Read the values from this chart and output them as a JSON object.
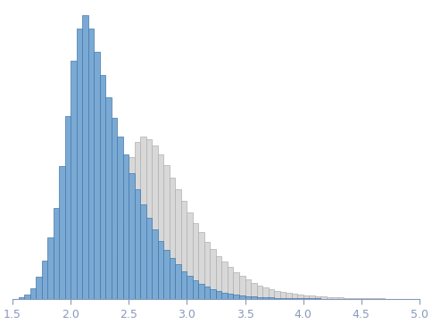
{
  "blue_hist": {
    "bin_edges": [
      1.55,
      1.6,
      1.65,
      1.7,
      1.75,
      1.8,
      1.85,
      1.9,
      1.95,
      2.0,
      2.05,
      2.1,
      2.15,
      2.2,
      2.25,
      2.3,
      2.35,
      2.4,
      2.45,
      2.5,
      2.55,
      2.6,
      2.65,
      2.7,
      2.75,
      2.8,
      2.85,
      2.9,
      2.95,
      3.0,
      3.05,
      3.1,
      3.15,
      3.2,
      3.25,
      3.3,
      3.35,
      3.4,
      3.45,
      3.5,
      3.55,
      3.6,
      3.65,
      3.7,
      3.75,
      3.8,
      3.85,
      3.9,
      3.95,
      4.0,
      4.05,
      4.1,
      4.15,
      4.2,
      4.25,
      4.3
    ],
    "counts": [
      2,
      5,
      12,
      25,
      42,
      68,
      100,
      145,
      200,
      260,
      295,
      310,
      295,
      270,
      245,
      220,
      198,
      178,
      158,
      138,
      120,
      104,
      89,
      76,
      64,
      54,
      45,
      38,
      31,
      26,
      21,
      17,
      14,
      11,
      9,
      7,
      6,
      5,
      4,
      3,
      3,
      2,
      2,
      2,
      1,
      1,
      1,
      1,
      1,
      1,
      1,
      1,
      0,
      0,
      0,
      0
    ]
  },
  "gray_hist": {
    "bin_edges": [
      2.25,
      2.3,
      2.35,
      2.4,
      2.45,
      2.5,
      2.55,
      2.6,
      2.65,
      2.7,
      2.75,
      2.8,
      2.85,
      2.9,
      2.95,
      3.0,
      3.05,
      3.1,
      3.15,
      3.2,
      3.25,
      3.3,
      3.35,
      3.4,
      3.45,
      3.5,
      3.55,
      3.6,
      3.65,
      3.7,
      3.75,
      3.8,
      3.85,
      3.9,
      3.95,
      4.0,
      4.05,
      4.1,
      4.15,
      4.2,
      4.25,
      4.3,
      4.35,
      4.4,
      4.45,
      4.5,
      4.55,
      4.6,
      4.65,
      4.7,
      4.75,
      4.8,
      4.85,
      4.9,
      4.95
    ],
    "counts": [
      5,
      18,
      45,
      85,
      125,
      155,
      172,
      178,
      175,
      168,
      158,
      146,
      133,
      120,
      107,
      95,
      83,
      73,
      63,
      55,
      47,
      41,
      35,
      30,
      26,
      22,
      18,
      15,
      13,
      11,
      9,
      8,
      7,
      6,
      5,
      4,
      4,
      3,
      3,
      2,
      2,
      2,
      1,
      1,
      1,
      1,
      1,
      1,
      1,
      0,
      0,
      0,
      0,
      0,
      0
    ]
  },
  "blue_face": "#7aaad4",
  "blue_edge": "#4477aa",
  "gray_face": "#d8d8d8",
  "gray_edge": "#b0b0b0",
  "xlim": [
    1.5,
    5.0
  ],
  "ylim_max_factor": 1.04,
  "xticks": [
    1.5,
    2.0,
    2.5,
    3.0,
    3.5,
    4.0,
    4.5,
    5.0
  ],
  "yticks": [],
  "background_color": "#ffffff",
  "tick_color": "#8899bb",
  "spine_color": "#8899bb",
  "tick_labelsize": 9
}
